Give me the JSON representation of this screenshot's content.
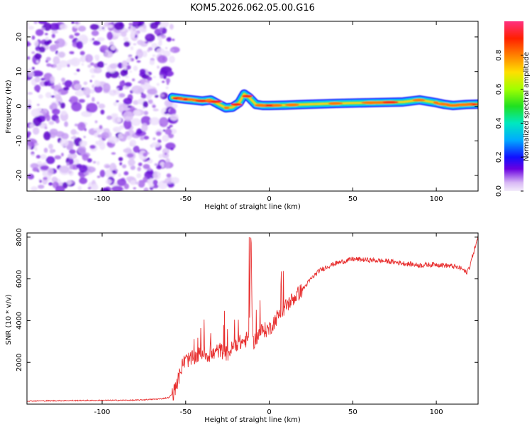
{
  "title": "KOM5.2026.062.05.00.G16",
  "chart_data": [
    {
      "type": "heatmap",
      "title": "KOM5.2026.062.05.00.G16",
      "xlabel": "Height of straight line (km)",
      "ylabel": "Frequency (Hz)",
      "xlim": [
        -145,
        125
      ],
      "ylim": [
        -24.5,
        24.5
      ],
      "xticks": [
        -100,
        -50,
        0,
        50,
        100
      ],
      "yticks": [
        -20,
        -10,
        0,
        10,
        20
      ],
      "colorbar": {
        "label": "Normalized spectral amplitude",
        "range": [
          0,
          1
        ],
        "ticks": [
          "0.0",
          "0.2",
          "0.4",
          "0.6",
          "0.8"
        ]
      },
      "noise_region": {
        "x": [
          -145,
          -58
        ]
      },
      "ridge": {
        "x": [
          -58,
          -50,
          -40,
          -35,
          -30,
          -26,
          -22,
          -18,
          -15,
          -12,
          -8,
          -4,
          0,
          10,
          20,
          40,
          60,
          80,
          90,
          100,
          105,
          110,
          118,
          125
        ],
        "freq": [
          2.5,
          2.0,
          1.5,
          1.8,
          0.5,
          -0.5,
          -0.3,
          1.0,
          3.5,
          2.5,
          0.5,
          0.2,
          0.2,
          0.3,
          0.5,
          0.8,
          1.0,
          1.2,
          1.8,
          1.0,
          0.5,
          0.2,
          0.5,
          0.6
        ]
      }
    },
    {
      "type": "line",
      "xlabel": "Height of straight line (km)",
      "ylabel": "SNR (10 * v/v)",
      "xlim": [
        -145,
        125
      ],
      "ylim": [
        0,
        8200
      ],
      "xticks": [
        -100,
        -50,
        0,
        50,
        100
      ],
      "yticks": [
        2000,
        4000,
        6000,
        8000
      ],
      "color": "#e83030",
      "series": [
        {
          "x": [
            -145,
            -120,
            -100,
            -80,
            -65,
            -60,
            -57,
            -54,
            -52,
            -50,
            -45,
            -40,
            -35,
            -30,
            -25,
            -20,
            -15,
            -12,
            -11,
            -10,
            -5,
            0,
            5,
            10,
            15,
            20,
            25,
            30,
            35,
            40,
            50,
            60,
            70,
            80,
            90,
            100,
            110,
            115,
            118,
            120,
            122,
            125
          ],
          "y": [
            150,
            170,
            180,
            190,
            250,
            320,
            600,
            1300,
            1900,
            2100,
            2200,
            2500,
            2300,
            2600,
            2400,
            2900,
            3000,
            3200,
            8000,
            2900,
            3500,
            3600,
            4200,
            4700,
            5100,
            5500,
            6000,
            6400,
            6600,
            6750,
            6950,
            6900,
            6850,
            6750,
            6650,
            6700,
            6600,
            6500,
            6300,
            6600,
            7200,
            8000
          ]
        }
      ],
      "spikes": [
        {
          "x": -12,
          "y": 8000
        },
        {
          "x": -35,
          "y": 3400
        },
        {
          "x": -25,
          "y": 3600
        }
      ]
    }
  ]
}
